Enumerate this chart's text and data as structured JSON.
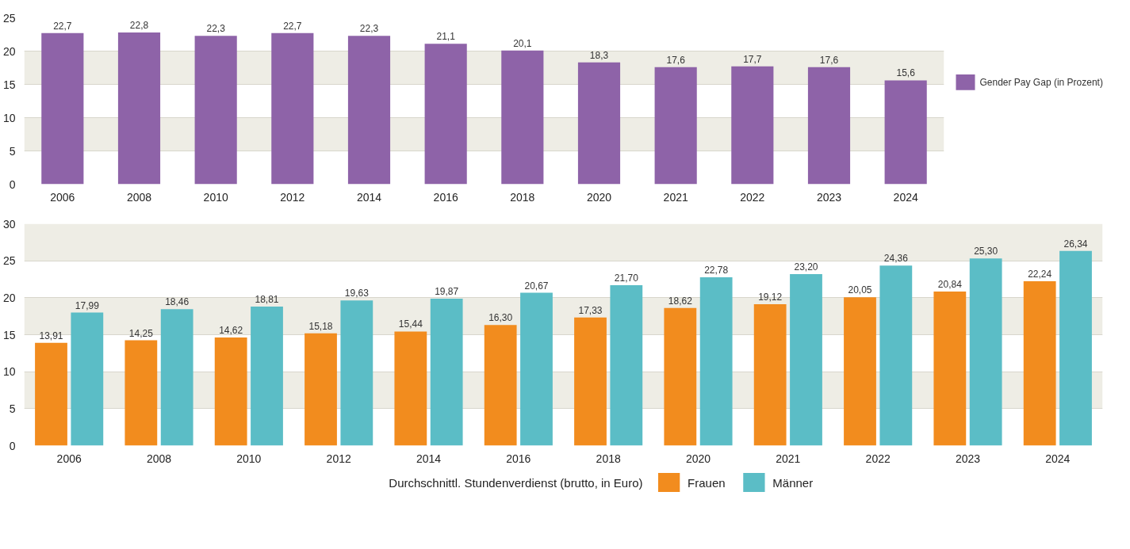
{
  "chart_data": [
    {
      "type": "bar",
      "categories": [
        "2006",
        "2008",
        "2010",
        "2012",
        "2014",
        "2016",
        "2018",
        "2020",
        "2021",
        "2022",
        "2023",
        "2024"
      ],
      "ylim": [
        0,
        25
      ],
      "yticks": [
        0,
        5,
        10,
        15,
        20,
        25
      ],
      "grid": "y",
      "legend": "right",
      "series": [
        {
          "name": "Gender Pay Gap (in Prozent)",
          "color": "#8e63a8",
          "values": [
            22.7,
            22.8,
            22.3,
            22.7,
            22.3,
            21.1,
            20.1,
            18.3,
            17.6,
            17.7,
            17.6,
            15.6
          ],
          "value_labels": [
            "22,7",
            "22,8",
            "22,3",
            "22,7",
            "22,3",
            "21,1",
            "20,1",
            "18,3",
            "17,6",
            "17,7",
            "17,6",
            "15,6"
          ]
        }
      ]
    },
    {
      "type": "bar",
      "categories": [
        "2006",
        "2008",
        "2010",
        "2012",
        "2014",
        "2016",
        "2018",
        "2020",
        "2021",
        "2022",
        "2023",
        "2024"
      ],
      "ylim": [
        0,
        30
      ],
      "yticks": [
        0,
        5,
        10,
        15,
        20,
        25,
        30
      ],
      "grid": "y",
      "legend": "bottom",
      "legend_title": "Durchschnittl. Stundenverdienst (brutto, in Euro)",
      "series": [
        {
          "name": "Frauen",
          "color": "#f28c1e",
          "values": [
            13.91,
            14.25,
            14.62,
            15.18,
            15.44,
            16.3,
            17.33,
            18.62,
            19.12,
            20.05,
            20.84,
            22.24
          ],
          "value_labels": [
            "13,91",
            "14,25",
            "14,62",
            "15,18",
            "15,44",
            "16,30",
            "17,33",
            "18,62",
            "19,12",
            "20,05",
            "20,84",
            "22,24"
          ]
        },
        {
          "name": "Männer",
          "color": "#5bbdc6",
          "values": [
            17.99,
            18.46,
            18.81,
            19.63,
            19.87,
            20.67,
            21.7,
            22.78,
            23.2,
            24.36,
            25.3,
            26.34
          ],
          "value_labels": [
            "17,99",
            "18,46",
            "18,81",
            "19,63",
            "19,87",
            "20,67",
            "21,70",
            "22,78",
            "23,20",
            "24,36",
            "25,30",
            "26,34"
          ]
        }
      ]
    }
  ]
}
